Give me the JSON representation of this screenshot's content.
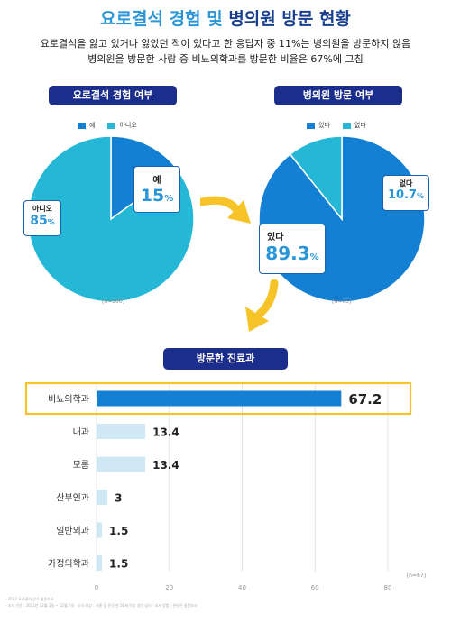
{
  "title": {
    "part1": "요로결석 경험 및 ",
    "part2": "병의원 방문 현황"
  },
  "subtitle": {
    "line1": "요로결석을 앓고 있거나 앓았던 적이 있다고 한 응답자 중 11%는 병의원을 방문하지 않음",
    "line2": "병의원을 방문한 사람 중 비뇨의학과를 방문한 비율은 67%에 그침"
  },
  "colors": {
    "dark_blue": "#1480d4",
    "light_cyan": "#25b8d6",
    "navy": "#1c2e8c",
    "bar_highlight": "#1480d4",
    "bar_light": "#cfe8f3",
    "arrow_yellow": "#f6c428"
  },
  "chart_data": [
    {
      "type": "pie",
      "title": "요로결석 경험 여부",
      "legend": [
        "예",
        "아니오"
      ],
      "slices": [
        {
          "label": "예",
          "value": 15
        },
        {
          "label": "아니오",
          "value": 85
        }
      ],
      "value_labels": [
        "15",
        "85"
      ],
      "unit": "%",
      "n_note": "[n=500]"
    },
    {
      "type": "pie",
      "title": "병의원 방문 여부",
      "legend": [
        "있다",
        "없다"
      ],
      "slices": [
        {
          "label": "있다",
          "value": 89.3
        },
        {
          "label": "없다",
          "value": 10.7
        }
      ],
      "value_labels": [
        "89.3",
        "10.7"
      ],
      "unit": "%",
      "n_note": "[n=75]"
    },
    {
      "type": "bar",
      "orientation": "horizontal",
      "title": "방문한 진료과",
      "categories": [
        "비뇨의학과",
        "내과",
        "모름",
        "산부인과",
        "일반외과",
        "가정의학과"
      ],
      "values": [
        67.2,
        13.4,
        13.4,
        3,
        1.5,
        1.5
      ],
      "value_labels": [
        "67.2",
        "13.4",
        "13.4",
        "3",
        "1.5",
        "1.5"
      ],
      "xlim": [
        0,
        80
      ],
      "xticks": [
        "0",
        "20",
        "40",
        "60",
        "80"
      ],
      "grid": true,
      "highlight": "비뇨의학과",
      "n_note": "[n=67]"
    }
  ],
  "footnotes": [
    "- 2022 요로결석 인식 설문조사",
    "- 조사 기간 : 2022년 12월 1일 ~ 12월 7일 · 조사 대상 : 서울 등 전국 만 20세 이상 성인 남녀 · 조사 방법 : 온라인 설문조사"
  ]
}
